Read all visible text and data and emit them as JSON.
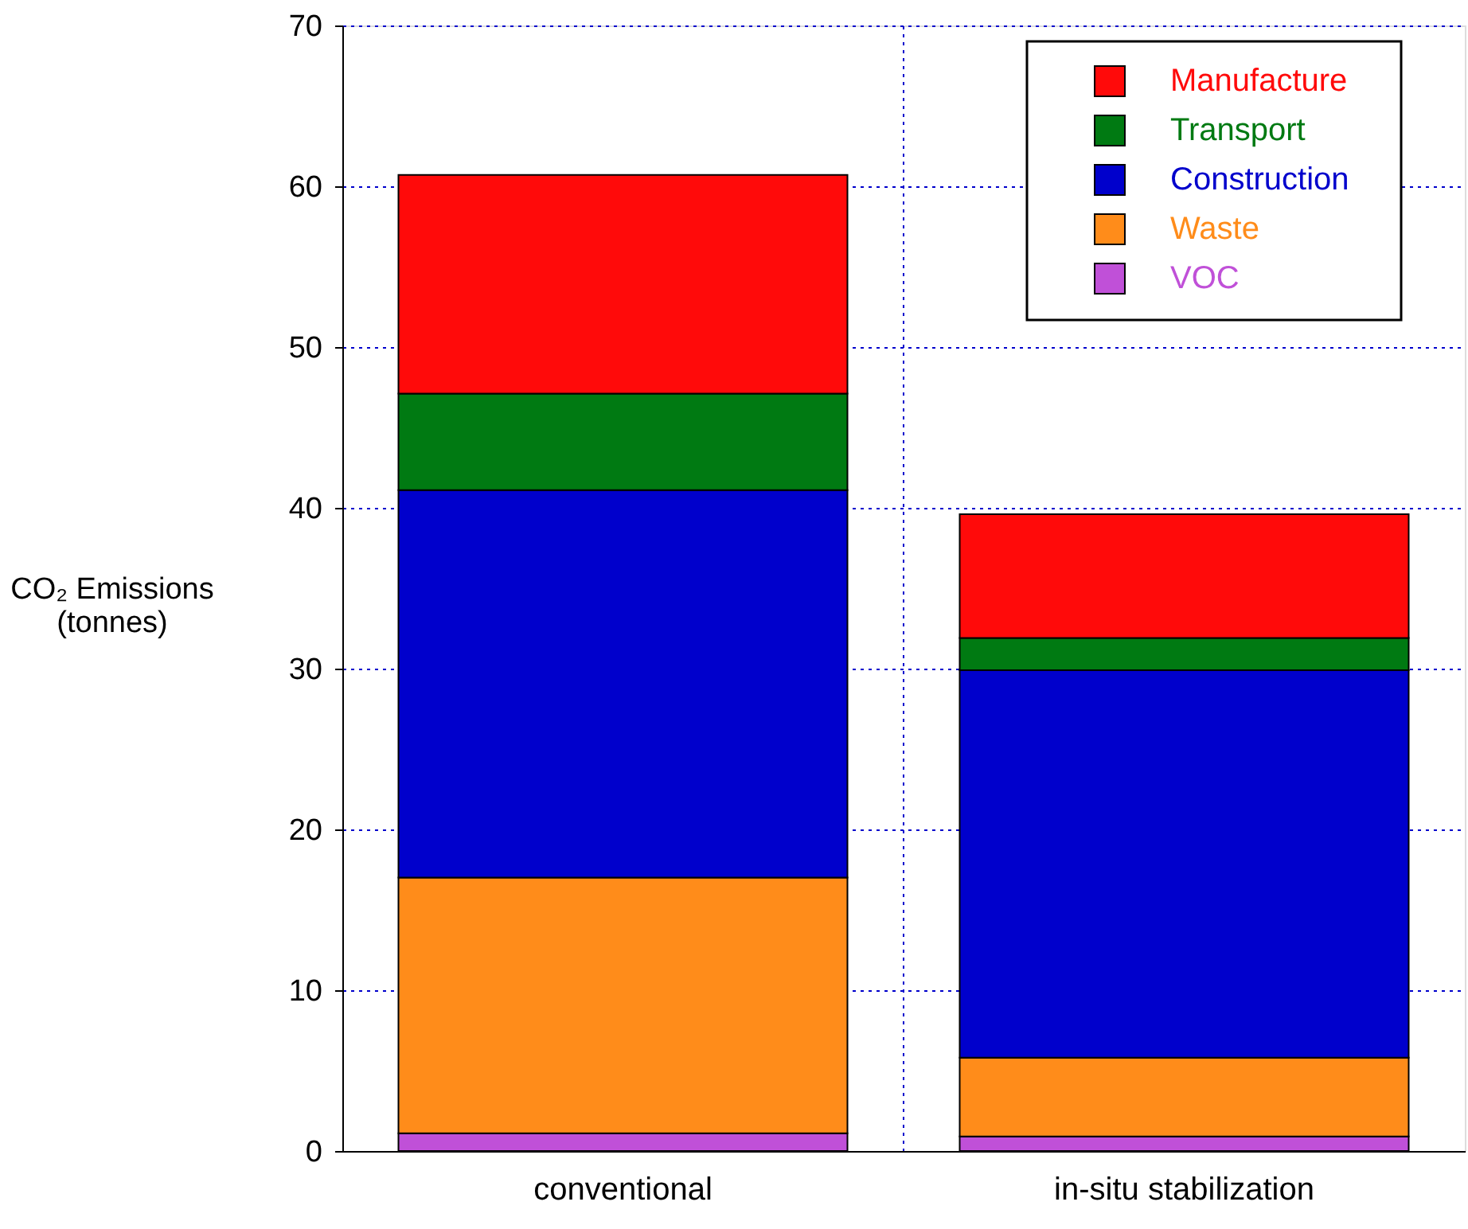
{
  "chart_data": {
    "type": "bar",
    "stacked": true,
    "ylabel": "CO₂ Emissions\n(tonnes)",
    "categories": [
      "conventional",
      "in-situ stabilization"
    ],
    "series": [
      {
        "name": "VOC",
        "color": "#c050d8",
        "values": [
          1.1,
          0.9
        ]
      },
      {
        "name": "Waste",
        "color": "#ff8c1a",
        "values": [
          15.9,
          4.9
        ]
      },
      {
        "name": "Construction",
        "color": "#0000cc",
        "values": [
          24.1,
          24.1
        ]
      },
      {
        "name": "Transport",
        "color": "#007a12",
        "values": [
          6.0,
          2.0
        ]
      },
      {
        "name": "Manufacture",
        "color": "#ff0a0a",
        "values": [
          13.6,
          7.7
        ]
      }
    ],
    "ylim": [
      0,
      70
    ],
    "yticks": [
      0,
      10,
      20,
      30,
      40,
      50,
      60,
      70
    ],
    "grid": true,
    "legend": "top right"
  }
}
